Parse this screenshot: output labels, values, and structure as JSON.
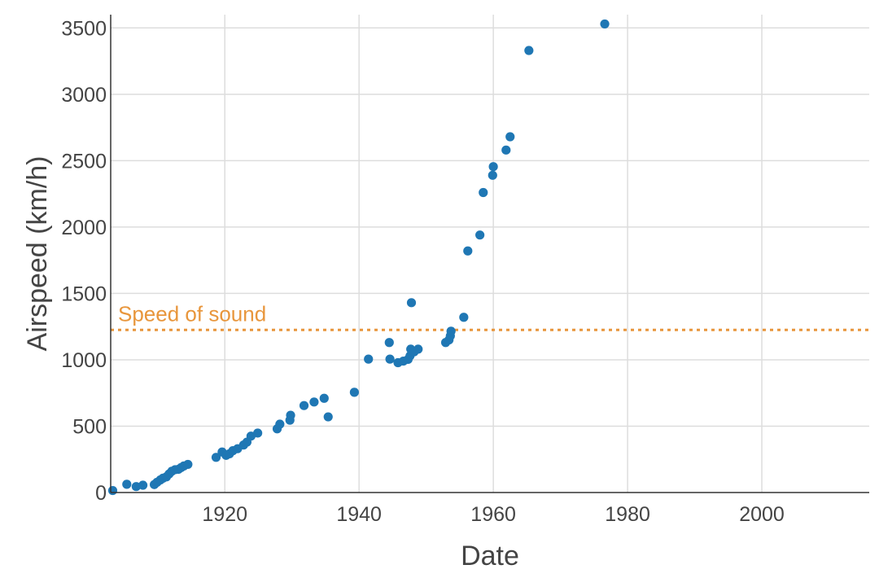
{
  "chart_data": {
    "type": "scatter",
    "xlabel": "Date",
    "ylabel": "Airspeed (km/h)",
    "xlim": [
      1903,
      2016
    ],
    "ylim": [
      0,
      3600
    ],
    "xticks": [
      1920,
      1940,
      1960,
      1980,
      2000
    ],
    "yticks": [
      0,
      500,
      1000,
      1500,
      2000,
      2500,
      3000,
      3500
    ],
    "grid": true,
    "point_color": "#1f77b4",
    "reference_line": {
      "y": 1225,
      "label": "Speed of sound",
      "color": "#e8963c",
      "style": "dotted"
    },
    "points": [
      {
        "x": 1903.3,
        "y": 15
      },
      {
        "x": 1905.4,
        "y": 62
      },
      {
        "x": 1906.8,
        "y": 45
      },
      {
        "x": 1907.8,
        "y": 55
      },
      {
        "x": 1909.5,
        "y": 60
      },
      {
        "x": 1909.9,
        "y": 77
      },
      {
        "x": 1910.4,
        "y": 95
      },
      {
        "x": 1910.8,
        "y": 108
      },
      {
        "x": 1911.3,
        "y": 118
      },
      {
        "x": 1911.7,
        "y": 140
      },
      {
        "x": 1912.1,
        "y": 160
      },
      {
        "x": 1912.6,
        "y": 172
      },
      {
        "x": 1913.1,
        "y": 175
      },
      {
        "x": 1913.5,
        "y": 188
      },
      {
        "x": 1913.9,
        "y": 200
      },
      {
        "x": 1914.5,
        "y": 212
      },
      {
        "x": 1918.7,
        "y": 265
      },
      {
        "x": 1919.6,
        "y": 305
      },
      {
        "x": 1920.2,
        "y": 280
      },
      {
        "x": 1920.7,
        "y": 292
      },
      {
        "x": 1921.2,
        "y": 315
      },
      {
        "x": 1921.9,
        "y": 330
      },
      {
        "x": 1922.8,
        "y": 358
      },
      {
        "x": 1923.3,
        "y": 380
      },
      {
        "x": 1923.9,
        "y": 425
      },
      {
        "x": 1924.9,
        "y": 448
      },
      {
        "x": 1927.8,
        "y": 480
      },
      {
        "x": 1928.2,
        "y": 515
      },
      {
        "x": 1929.7,
        "y": 545
      },
      {
        "x": 1929.8,
        "y": 582
      },
      {
        "x": 1931.8,
        "y": 655
      },
      {
        "x": 1933.3,
        "y": 682
      },
      {
        "x": 1934.8,
        "y": 710
      },
      {
        "x": 1935.4,
        "y": 570
      },
      {
        "x": 1939.3,
        "y": 755
      },
      {
        "x": 1941.4,
        "y": 1005
      },
      {
        "x": 1944.5,
        "y": 1130
      },
      {
        "x": 1944.6,
        "y": 1005
      },
      {
        "x": 1945.8,
        "y": 978
      },
      {
        "x": 1946.6,
        "y": 990
      },
      {
        "x": 1947.3,
        "y": 1003
      },
      {
        "x": 1947.6,
        "y": 1030
      },
      {
        "x": 1947.7,
        "y": 1080
      },
      {
        "x": 1947.8,
        "y": 1430
      },
      {
        "x": 1948.2,
        "y": 1060
      },
      {
        "x": 1948.8,
        "y": 1080
      },
      {
        "x": 1952.9,
        "y": 1130
      },
      {
        "x": 1953.4,
        "y": 1150
      },
      {
        "x": 1953.6,
        "y": 1180
      },
      {
        "x": 1953.7,
        "y": 1215
      },
      {
        "x": 1955.6,
        "y": 1320
      },
      {
        "x": 1956.2,
        "y": 1820
      },
      {
        "x": 1958.0,
        "y": 1940
      },
      {
        "x": 1958.5,
        "y": 2260
      },
      {
        "x": 1959.9,
        "y": 2390
      },
      {
        "x": 1960.0,
        "y": 2455
      },
      {
        "x": 1961.9,
        "y": 2580
      },
      {
        "x": 1962.5,
        "y": 2680
      },
      {
        "x": 1965.3,
        "y": 3330
      },
      {
        "x": 1976.6,
        "y": 3530
      }
    ]
  }
}
